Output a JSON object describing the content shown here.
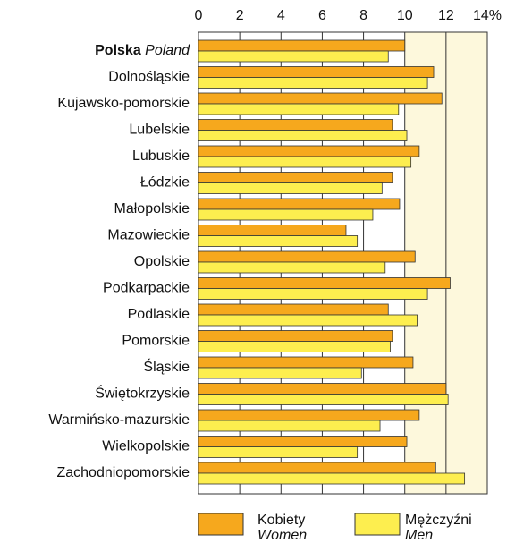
{
  "chart_data": {
    "type": "barh",
    "categories": [
      "Polska",
      "Dolnośląskie",
      "Kujawsko-pomorskie",
      "Lubelskie",
      "Lubuskie",
      "Łódzkie",
      "Małopolskie",
      "Mazowieckie",
      "Opolskie",
      "Podkarpackie",
      "Podlaskie",
      "Pomorskie",
      "Śląskie",
      "Świętokrzyskie",
      "Warmińsko-mazurskie",
      "Wielkopolskie",
      "Zachodniopomorskie"
    ],
    "first_category_translation": "Poland",
    "series": [
      {
        "name": "Kobiety",
        "name_translation": "Women",
        "color": "#f6a81d",
        "values": [
          10.0,
          11.4,
          11.8,
          9.4,
          10.7,
          9.4,
          9.75,
          7.15,
          10.5,
          12.2,
          9.2,
          9.4,
          10.4,
          12.0,
          10.7,
          10.1,
          11.5
        ]
      },
      {
        "name": "Mężczyźni",
        "name_translation": "Men",
        "color": "#fdee4f",
        "values": [
          9.2,
          11.1,
          9.7,
          10.1,
          10.3,
          8.9,
          8.45,
          7.7,
          9.05,
          11.1,
          10.6,
          9.3,
          7.9,
          12.1,
          8.8,
          7.7,
          12.9
        ]
      }
    ],
    "xlim": [
      0,
      14
    ],
    "xticks": [
      0,
      2,
      4,
      6,
      8,
      10,
      12,
      {
        "value": 14,
        "label": "14%"
      }
    ],
    "grid": true
  }
}
